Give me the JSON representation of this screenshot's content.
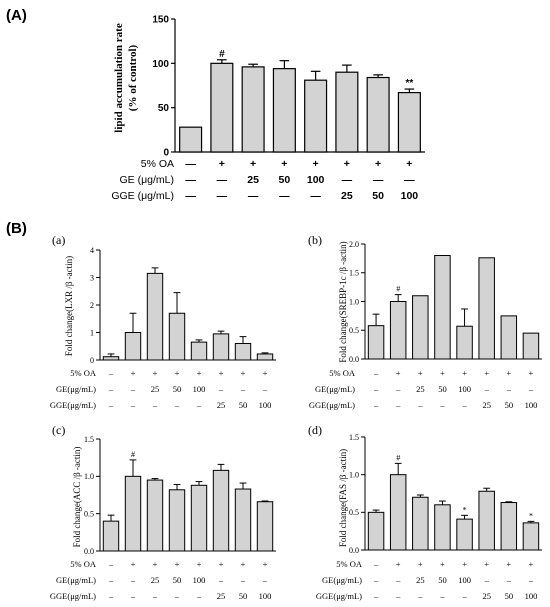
{
  "panel_A": {
    "label": "(A)",
    "chart_data": {
      "type": "bar",
      "ylabel_line1": "lipid accumulation rate",
      "ylabel_line2": "(% of control)",
      "ylim": [
        0,
        150
      ],
      "yticks": [
        "0",
        "50",
        "100",
        "150"
      ],
      "values": [
        28,
        100,
        96,
        94,
        81,
        90,
        84,
        67
      ],
      "errors": [
        0,
        4,
        3,
        9,
        10,
        8,
        3,
        4
      ],
      "markers": [
        "",
        "#",
        "",
        "",
        "",
        "",
        "",
        "**"
      ]
    },
    "rows": [
      {
        "label": "5% OA",
        "values": [
          "—",
          "+",
          "+",
          "+",
          "+",
          "+",
          "+",
          "+"
        ]
      },
      {
        "label": "GE (μg/mL)",
        "values": [
          "—",
          "—",
          "25",
          "50",
          "100",
          "—",
          "—",
          "—"
        ]
      },
      {
        "label": "GGE (μg/mL)",
        "values": [
          "—",
          "—",
          "—",
          "—",
          "—",
          "25",
          "50",
          "100"
        ]
      }
    ]
  },
  "panel_B": {
    "label": "(B)",
    "rows": [
      {
        "label": "5% OA",
        "values": [
          "–",
          "+",
          "+",
          "+",
          "+",
          "+",
          "+",
          "+"
        ]
      },
      {
        "label": "GE(μg/mL)",
        "values": [
          "–",
          "–",
          "25",
          "50",
          "100",
          "–",
          "–",
          "–"
        ]
      },
      {
        "label": "GGE(μg/mL)",
        "values": [
          "–",
          "–",
          "–",
          "–",
          "–",
          "25",
          "50",
          "100"
        ]
      }
    ],
    "subpanels": [
      {
        "label": "(a)",
        "chart_data": {
          "type": "bar",
          "ylabel": "Fold change(LXR /β -actin)",
          "ylim": [
            0,
            4
          ],
          "yticks": [
            "0",
            "1",
            "2",
            "3",
            "4"
          ],
          "values": [
            0.12,
            1.0,
            3.15,
            1.7,
            0.65,
            0.95,
            0.6,
            0.22
          ],
          "errors": [
            0.1,
            0.7,
            0.2,
            0.75,
            0.08,
            0.1,
            0.25,
            0.04
          ],
          "markers": [
            "",
            "",
            "",
            "",
            "",
            "",
            "",
            ""
          ]
        }
      },
      {
        "label": "(b)",
        "chart_data": {
          "type": "bar",
          "ylabel": "Fold change(SREBP-1c /β -actin)",
          "ylim": [
            0,
            2.0
          ],
          "yticks": [
            "0.0",
            "0.5",
            "1.0",
            "1.5",
            "2.0"
          ],
          "values": [
            0.58,
            1.0,
            1.1,
            1.8,
            0.57,
            1.76,
            0.75,
            0.45
          ],
          "errors": [
            0.2,
            0.12,
            0,
            0,
            0.3,
            0,
            0,
            0
          ],
          "markers": [
            "",
            "#",
            "",
            "",
            "",
            "",
            "",
            ""
          ]
        }
      },
      {
        "label": "(c)",
        "chart_data": {
          "type": "bar",
          "ylabel": "Fold change(ACC /β -actin)",
          "ylim": [
            0,
            1.5
          ],
          "yticks": [
            "0.0",
            "0.5",
            "1.0",
            "1.5"
          ],
          "values": [
            0.4,
            1.0,
            0.95,
            0.82,
            0.88,
            1.08,
            0.83,
            0.66
          ],
          "errors": [
            0.08,
            0.22,
            0.02,
            0.07,
            0.05,
            0.08,
            0.08,
            0.01
          ],
          "markers": [
            "",
            "#",
            "",
            "",
            "",
            "",
            "",
            ""
          ]
        }
      },
      {
        "label": "(d)",
        "chart_data": {
          "type": "bar",
          "ylabel": "Fold change(FAS /β -actin)",
          "ylim": [
            0,
            1.5
          ],
          "yticks": [
            "0.0",
            "0.5",
            "1.0",
            "1.5"
          ],
          "values": [
            0.5,
            1.0,
            0.7,
            0.6,
            0.41,
            0.78,
            0.63,
            0.36
          ],
          "errors": [
            0.03,
            0.15,
            0.03,
            0.05,
            0.05,
            0.04,
            0.01,
            0.02
          ],
          "markers": [
            "",
            "#",
            "",
            "",
            "*",
            "",
            "",
            "*"
          ]
        }
      }
    ]
  }
}
